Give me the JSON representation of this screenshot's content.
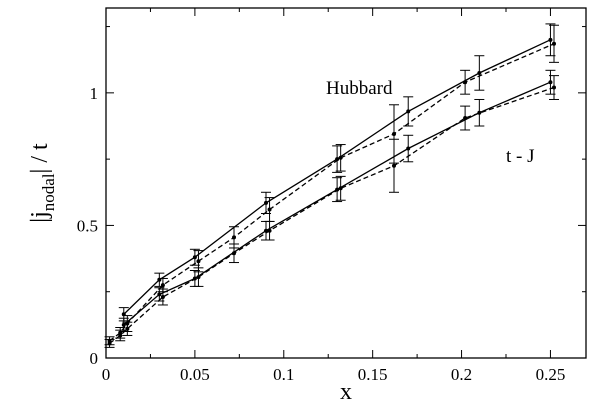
{
  "chart_data": {
    "type": "line",
    "title": "",
    "xlabel": "x",
    "ylabel": "|j",
    "ylabel_sub": "nodal",
    "ylabel_tail": "| / t",
    "xlim": [
      0,
      0.27
    ],
    "ylim": [
      0,
      1.32
    ],
    "xticks": [
      0,
      0.05,
      0.1,
      0.15,
      0.2,
      0.25
    ],
    "xtick_labels": [
      "0",
      "0.05",
      "0.1",
      "0.15",
      "0.2",
      "0.25"
    ],
    "yticks": [
      0,
      0.5,
      1
    ],
    "ytick_labels": [
      "0",
      "0.5",
      "1"
    ],
    "grid": false,
    "annotations": [
      "Hubbard",
      "t - J"
    ],
    "series": [
      {
        "group": "Hubbard",
        "style": "solid",
        "x": [
          0.01,
          0.03,
          0.05,
          0.09,
          0.13,
          0.17,
          0.21,
          0.25
        ],
        "y": [
          0.165,
          0.295,
          0.38,
          0.585,
          0.75,
          0.93,
          1.075,
          1.2
        ],
        "err": [
          0.025,
          0.025,
          0.03,
          0.04,
          0.05,
          0.055,
          0.065,
          0.06
        ]
      },
      {
        "group": "Hubbard",
        "style": "dashed",
        "x": [
          0.002,
          0.008,
          0.012,
          0.032,
          0.052,
          0.072,
          0.092,
          0.132,
          0.162,
          0.202,
          0.252
        ],
        "y": [
          0.065,
          0.095,
          0.13,
          0.275,
          0.365,
          0.455,
          0.56,
          0.755,
          0.845,
          1.04,
          1.185
        ],
        "err": [
          0.015,
          0.02,
          0.03,
          0.025,
          0.04,
          0.04,
          0.045,
          0.05,
          0.11,
          0.045,
          0.07
        ]
      },
      {
        "group": "t - J",
        "style": "solid",
        "x": [
          0.01,
          0.03,
          0.05,
          0.09,
          0.13,
          0.17,
          0.21,
          0.25
        ],
        "y": [
          0.125,
          0.24,
          0.3,
          0.48,
          0.635,
          0.79,
          0.925,
          1.04
        ],
        "err": [
          0.025,
          0.025,
          0.03,
          0.035,
          0.045,
          0.05,
          0.05,
          0.045
        ]
      },
      {
        "group": "t - J",
        "style": "dashed",
        "x": [
          0.002,
          0.008,
          0.012,
          0.032,
          0.052,
          0.072,
          0.092,
          0.132,
          0.162,
          0.202,
          0.252
        ],
        "y": [
          0.055,
          0.085,
          0.11,
          0.23,
          0.305,
          0.395,
          0.48,
          0.64,
          0.725,
          0.905,
          1.02
        ],
        "err": [
          0.015,
          0.02,
          0.025,
          0.03,
          0.035,
          0.035,
          0.035,
          0.045,
          0.1,
          0.045,
          0.045
        ]
      }
    ]
  }
}
